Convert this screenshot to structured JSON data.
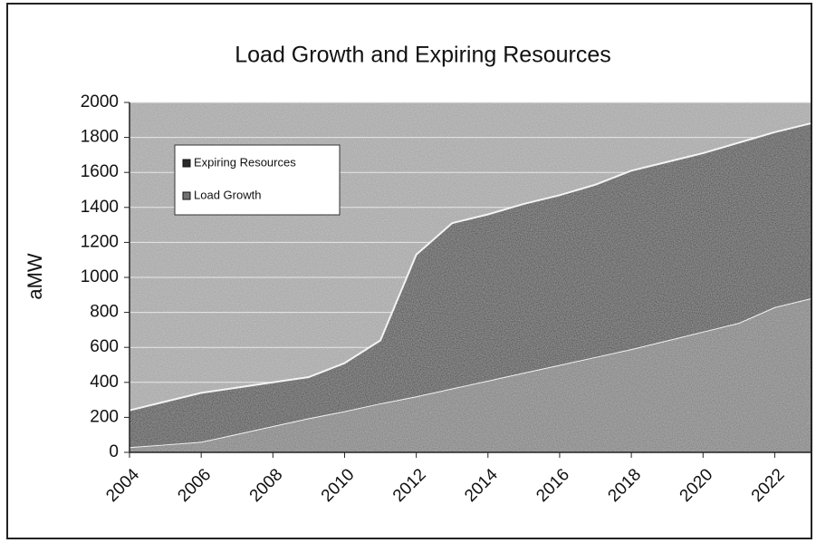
{
  "chart_data": {
    "type": "stacked_area",
    "title": "Load Growth and Expiring Resources",
    "y_label": "aMW",
    "x": [
      2004,
      2005,
      2006,
      2007,
      2008,
      2009,
      2010,
      2011,
      2012,
      2013,
      2014,
      2015,
      2016,
      2017,
      2018,
      2019,
      2020,
      2021,
      2022,
      2023
    ],
    "series": [
      {
        "name": "Expiring Resources",
        "color": "#2b2b2b",
        "values": [
          210,
          245,
          280,
          265,
          250,
          235,
          275,
          360,
          810,
          945,
          950,
          965,
          970,
          985,
          1020,
          1020,
          1020,
          1030,
          1000,
          1000
        ]
      },
      {
        "name": "Load Growth",
        "color": "#727272",
        "values": [
          30,
          45,
          60,
          105,
          150,
          195,
          235,
          280,
          320,
          365,
          410,
          455,
          500,
          545,
          590,
          640,
          690,
          740,
          830,
          880
        ]
      }
    ],
    "xlim": [
      2004,
      2023
    ],
    "xticks": [
      2004,
      2006,
      2008,
      2010,
      2012,
      2014,
      2016,
      2018,
      2020,
      2022
    ],
    "ylim": [
      0,
      2000
    ],
    "yticks": [
      0,
      200,
      400,
      600,
      800,
      1000,
      1200,
      1400,
      1600,
      1800,
      2000
    ],
    "grid": true,
    "legend": "upper left"
  }
}
